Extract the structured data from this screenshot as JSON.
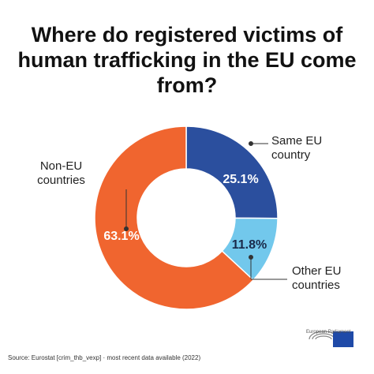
{
  "chart_data": {
    "type": "donut",
    "title": "Where do registered victims of human trafficking in the EU come from?",
    "categories": [
      "Same EU country",
      "Other EU countries",
      "Non-EU countries"
    ],
    "values": [
      25.1,
      11.8,
      63.1
    ],
    "value_labels": [
      "25.1%",
      "11.8%",
      "63.1%"
    ],
    "colors": [
      "#2b4f9e",
      "#72c8ec",
      "#f0652f"
    ],
    "source": "Source: Eurostat [crim_thb_vexp] · most recent data available (2022)",
    "logo_text": "European Parliament"
  }
}
